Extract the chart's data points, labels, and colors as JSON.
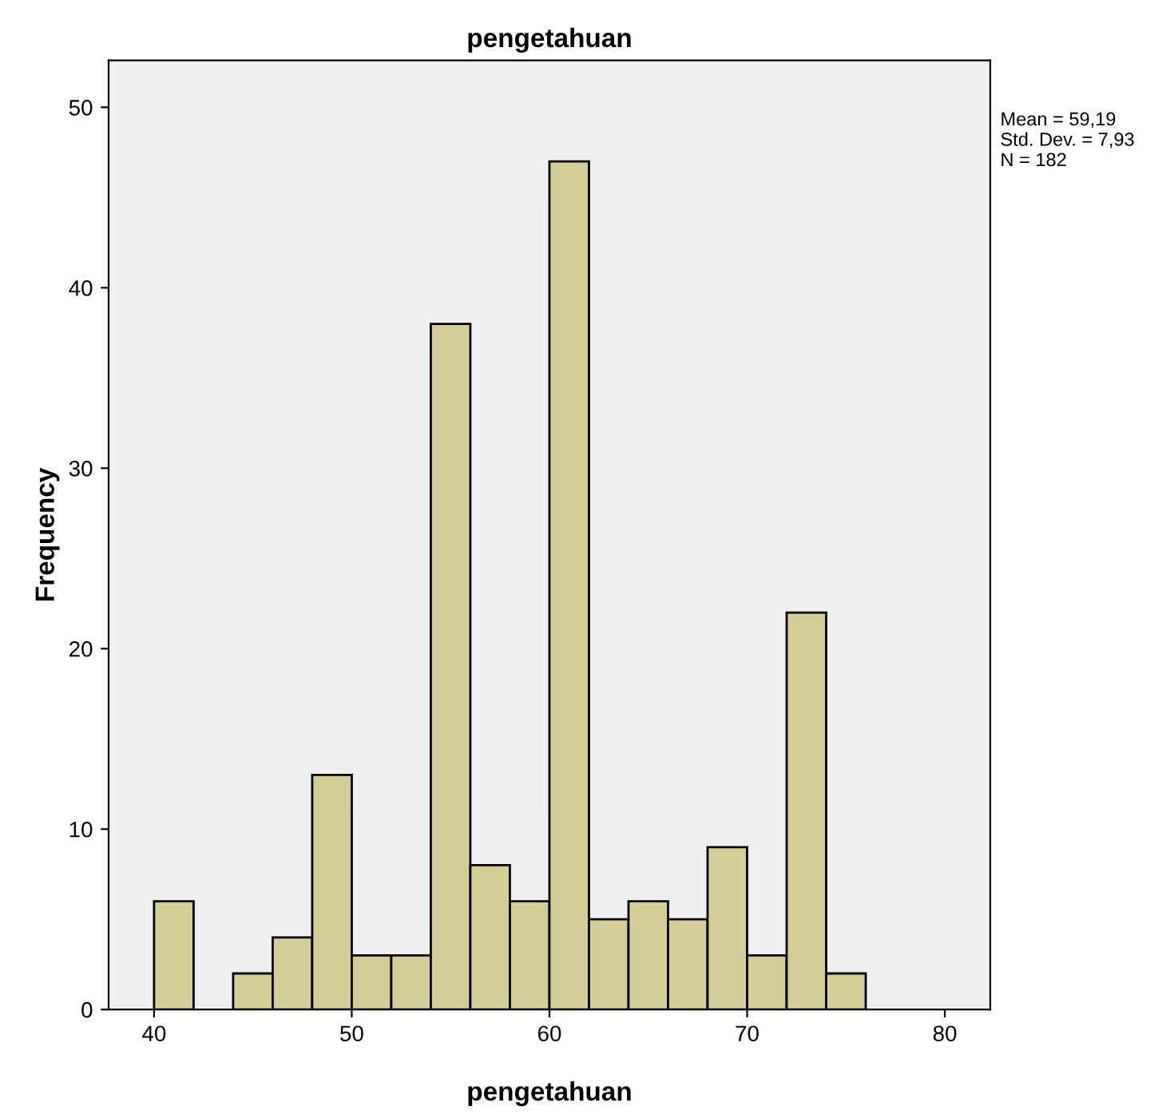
{
  "chart_data": {
    "type": "histogram",
    "title": "pengetahuan",
    "xlabel": "pengetahuan",
    "ylabel": "Frequency",
    "bins": [
      40,
      42,
      44,
      46,
      48,
      50,
      52,
      54,
      56,
      58,
      60,
      62,
      64,
      66,
      68,
      70,
      72,
      74,
      76
    ],
    "values": [
      6,
      0,
      2,
      4,
      13,
      3,
      3,
      38,
      8,
      6,
      47,
      5,
      6,
      5,
      9,
      3,
      22,
      2
    ],
    "color": "#d3ce97",
    "xlim": [
      37.7,
      82.3
    ],
    "xticks": [
      40,
      50,
      60,
      70,
      80
    ],
    "ylim": [
      0,
      52.6
    ],
    "yticks": [
      0,
      10,
      20,
      30,
      40,
      50
    ],
    "annotations": [
      "Mean = 59,19\nStd. Dev. = 7,93\nN = 182"
    ],
    "grid": false
  }
}
